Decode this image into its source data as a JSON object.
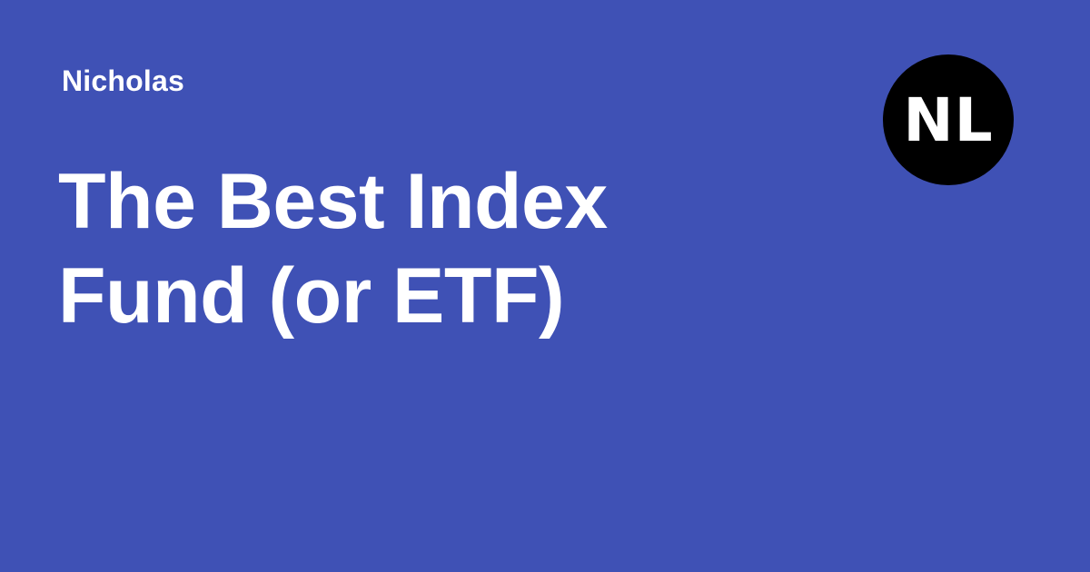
{
  "card": {
    "background_color": "#3f51b5",
    "author": "Nicholas",
    "title_lines": [
      "The Best Index",
      "Fund (or ETF)"
    ]
  },
  "logo": {
    "text": "NL",
    "background_color": "#000000"
  }
}
